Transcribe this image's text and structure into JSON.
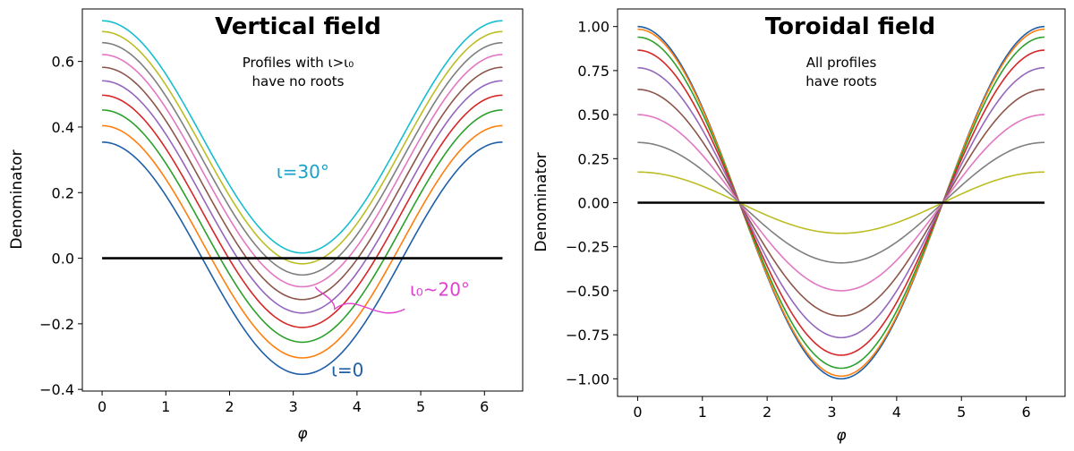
{
  "chart_data": [
    {
      "type": "line",
      "title": "Vertical field",
      "annotation": [
        "Profiles with ι>ι₀",
        "have no roots"
      ],
      "xlabel": "φ",
      "ylabel": "Denominator",
      "xlim": [
        -0.31,
        6.6
      ],
      "ylim": [
        -0.405,
        0.76
      ],
      "xticks": [
        0,
        1,
        2,
        3,
        4,
        5,
        6
      ],
      "yticks": [
        -0.4,
        -0.2,
        0.0,
        0.2,
        0.4,
        0.6
      ],
      "ytick_labels": [
        "−0.4",
        "−0.2",
        "0.0",
        "0.2",
        "0.4",
        "0.6"
      ],
      "xtick_labels": [
        "0",
        "1",
        "2",
        "3",
        "4",
        "5",
        "6"
      ],
      "grid": false,
      "function": "y = A·cos(φ) + B",
      "series": [
        {
          "A": 0.354,
          "B": 0.0,
          "color": "#1f5fa8"
        },
        {
          "A": 0.354,
          "B": 0.05,
          "color": "#ff7f0e"
        },
        {
          "A": 0.354,
          "B": 0.098,
          "color": "#2ca02c"
        },
        {
          "A": 0.354,
          "B": 0.143,
          "color": "#d62728"
        },
        {
          "A": 0.354,
          "B": 0.187,
          "color": "#9467bd"
        },
        {
          "A": 0.354,
          "B": 0.228,
          "color": "#8c564b"
        },
        {
          "A": 0.354,
          "B": 0.267,
          "color": "#e377c2"
        },
        {
          "A": 0.354,
          "B": 0.303,
          "color": "#7f7f7f"
        },
        {
          "A": 0.354,
          "B": 0.337,
          "color": "#bcbd22"
        },
        {
          "A": 0.354,
          "B": 0.37,
          "color": "#17becf"
        }
      ],
      "reference_line": {
        "y": 0.0,
        "color": "#000000"
      },
      "labels": [
        {
          "text": "ι=30°",
          "x": 3.15,
          "y": 0.245,
          "color": "#17a2c8"
        },
        {
          "text": "ι=0",
          "x": 3.85,
          "y": -0.36,
          "color": "#1f5fa8"
        },
        {
          "text": "ι₀~20°",
          "x": 5.3,
          "y": -0.115,
          "color": "#e040d0"
        }
      ]
    },
    {
      "type": "line",
      "title": "Toroidal field",
      "annotation": [
        "All profiles",
        "have roots"
      ],
      "xlabel": "φ",
      "ylabel": "Denominator",
      "xlim": [
        -0.31,
        6.6
      ],
      "ylim": [
        -1.1,
        1.1
      ],
      "xticks": [
        0,
        1,
        2,
        3,
        4,
        5,
        6
      ],
      "yticks": [
        -1.0,
        -0.75,
        -0.5,
        -0.25,
        0.0,
        0.25,
        0.5,
        0.75,
        1.0
      ],
      "ytick_labels": [
        "−1.00",
        "−0.75",
        "−0.50",
        "−0.25",
        "0.00",
        "0.25",
        "0.50",
        "0.75",
        "1.00"
      ],
      "xtick_labels": [
        "0",
        "1",
        "2",
        "3",
        "4",
        "5",
        "6"
      ],
      "grid": false,
      "function": "y = A·cos(φ)",
      "series": [
        {
          "A": 1.0,
          "color": "#1f5fa8"
        },
        {
          "A": 0.985,
          "color": "#ff7f0e"
        },
        {
          "A": 0.94,
          "color": "#2ca02c"
        },
        {
          "A": 0.866,
          "color": "#d62728"
        },
        {
          "A": 0.766,
          "color": "#9467bd"
        },
        {
          "A": 0.643,
          "color": "#8c564b"
        },
        {
          "A": 0.5,
          "color": "#e377c2"
        },
        {
          "A": 0.342,
          "color": "#7f7f7f"
        },
        {
          "A": 0.174,
          "color": "#bcbd22"
        }
      ],
      "reference_line": {
        "y": 0.0,
        "color": "#000000"
      }
    }
  ]
}
